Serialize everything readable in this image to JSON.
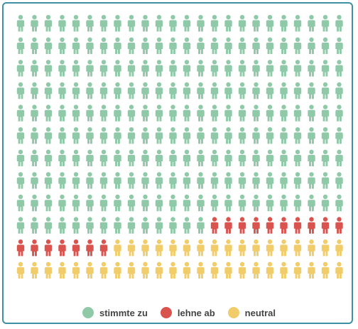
{
  "chart_data": {
    "type": "waffle",
    "unit": "person-icon",
    "columns": 24,
    "rows": 12,
    "categories": [
      "stimmte zu",
      "lehne ab",
      "neutral"
    ],
    "values": [
      230,
      17,
      41
    ],
    "colors": [
      "#8fc9a8",
      "#d9534f",
      "#f0cd6a"
    ],
    "legend_position": "bottom-center"
  }
}
